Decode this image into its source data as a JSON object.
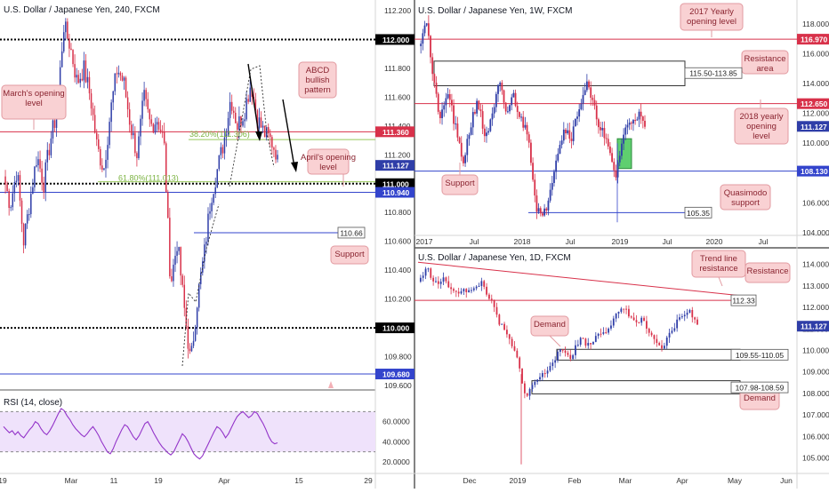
{
  "colors": {
    "up": "#2f3ea8",
    "down": "#d8314a",
    "red_line": "#d8314a",
    "blue_line": "#3344cc",
    "fib_line": "#98c85a",
    "note_fill": "#f9d1d3",
    "note_stroke": "#e29aa0",
    "rsi_fill": "#efe2fb",
    "rsi_line": "#9334c9",
    "demand_fill": "#5fcf6f"
  },
  "chart_data": [
    {
      "type": "candlestick",
      "title": "U.S. Dollar / Japanese Yen, 240, FXCM",
      "ylim": [
        109.6,
        112.2
      ],
      "y_ticks": [
        "112.200",
        "112.000",
        "111.800",
        "111.600",
        "111.400",
        "111.200",
        "111.000",
        "110.800",
        "110.600",
        "110.400",
        "110.200",
        "110.000",
        "109.800",
        "109.600"
      ],
      "x_ticks": [
        "19",
        "Mar",
        "11",
        "19",
        "Apr",
        "15",
        "29"
      ],
      "price_labels": [
        {
          "text": "112.000",
          "value": 112.0,
          "color": "#000000"
        },
        {
          "text": "111.360",
          "value": 111.36,
          "color": "#d8314a"
        },
        {
          "text": "111.127",
          "value": 111.127,
          "color": "#2f3ea8"
        },
        {
          "text": "111.000",
          "value": 111.0,
          "color": "#000000"
        },
        {
          "text": "110.940",
          "value": 110.94,
          "color": "#3344cc"
        },
        {
          "text": "110.000",
          "value": 110.0,
          "color": "#000000"
        },
        {
          "text": "109.680",
          "value": 109.68,
          "color": "#3344cc"
        }
      ],
      "horizontal_lines": [
        {
          "value": 112.0,
          "style": "dotted",
          "color": "#000000"
        },
        {
          "value": 111.36,
          "style": "solid",
          "color": "#d8314a"
        },
        {
          "value": 111.0,
          "style": "dotted",
          "color": "#000000"
        },
        {
          "value": 110.94,
          "style": "solid",
          "color": "#3344cc"
        },
        {
          "value": 110.0,
          "style": "dotted",
          "color": "#000000"
        },
        {
          "value": 109.68,
          "style": "solid",
          "color": "#3344cc"
        },
        {
          "value": 110.66,
          "style": "solid",
          "color": "#3344cc"
        }
      ],
      "fib_labels": [
        "38.20%(111.306)",
        "61.80%(111.013)"
      ],
      "annotations": [
        "March's opening level",
        "ABCD bullish pattern",
        "April's opening level",
        "Support"
      ],
      "callout": "110.66"
    },
    {
      "type": "line",
      "title": "RSI (14, close)",
      "ylim": [
        20,
        80
      ],
      "y_ticks": [
        "60.0000",
        "40.0000",
        "20.0000"
      ],
      "values": [
        55,
        52,
        49,
        51,
        47,
        50,
        46,
        44,
        48,
        52,
        55,
        60,
        58,
        53,
        49,
        47,
        51,
        56,
        62,
        68,
        73,
        71,
        66,
        62,
        57,
        53,
        50,
        47,
        45,
        48,
        52,
        55,
        51,
        46,
        40,
        35,
        30,
        28,
        33,
        40,
        46,
        52,
        57,
        55,
        50,
        45,
        42,
        46,
        52,
        58,
        60,
        55,
        49,
        44,
        39,
        35,
        32,
        29,
        27,
        30,
        36,
        42,
        48,
        45,
        40,
        34,
        28,
        25,
        23,
        26,
        32,
        38,
        44,
        50,
        55,
        53,
        49,
        44,
        48,
        54,
        60,
        65,
        68,
        70,
        67,
        64,
        66,
        70,
        68,
        63,
        58,
        52,
        45,
        40,
        38,
        39
      ]
    },
    {
      "type": "candlestick",
      "title": "U.S. Dollar / Japanese Yen, 1W, FXCM",
      "ylim": [
        104.0,
        119.0
      ],
      "y_ticks": [
        "118.000",
        "116.000",
        "114.000",
        "112.000",
        "110.000",
        "108.000",
        "106.000",
        "104.000"
      ],
      "x_ticks": [
        "2017",
        "Jul",
        "2018",
        "Jul",
        "2019",
        "Jul",
        "2020",
        "Jul"
      ],
      "price_labels": [
        {
          "text": "116.970",
          "value": 116.97,
          "color": "#d8314a"
        },
        {
          "text": "112.650",
          "value": 112.65,
          "color": "#d8314a"
        },
        {
          "text": "111.127",
          "value": 111.127,
          "color": "#2f3ea8"
        },
        {
          "text": "108.130",
          "value": 108.13,
          "color": "#3344cc"
        }
      ],
      "callouts": [
        "115.50-113.85",
        "105.35"
      ],
      "annotations": [
        "2017 Yearly opening level",
        "Resistance area",
        "2018 yearly opening level",
        "Support",
        "Quasimodo support"
      ]
    },
    {
      "type": "candlestick",
      "title": "U.S. Dollar / Japanese Yen, 1D, FXCM",
      "ylim": [
        104.4,
        114.4
      ],
      "y_ticks": [
        "114.000",
        "113.000",
        "112.000",
        "111.000",
        "110.000",
        "109.000",
        "108.000",
        "107.000",
        "106.000",
        "105.000"
      ],
      "x_ticks": [
        "Dec",
        "2019",
        "Feb",
        "Mar",
        "Apr",
        "May",
        "Jun"
      ],
      "price_labels": [
        {
          "text": "111.127",
          "value": 111.127,
          "color": "#2f3ea8"
        }
      ],
      "callouts": [
        "112.33",
        "109.55-110.05",
        "107.98-108.59"
      ],
      "annotations": [
        "Trend line resistance",
        "Resistance",
        "Demand",
        "Demand"
      ]
    }
  ]
}
